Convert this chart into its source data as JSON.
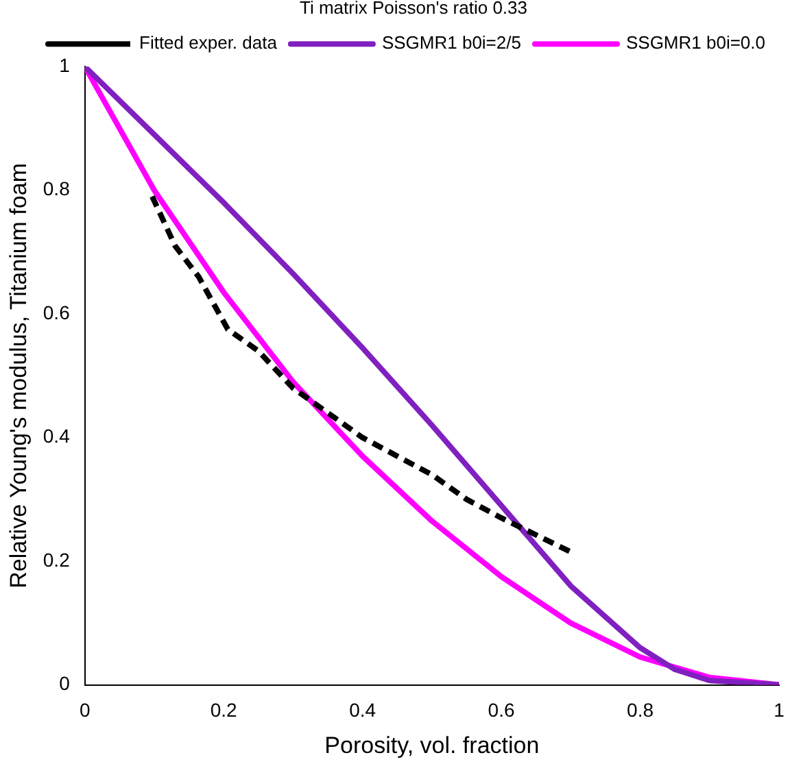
{
  "chart_data": {
    "type": "line",
    "xlabel": "Porosity, vol. fraction",
    "ylabel": "Relative Young's modulus, Titanium foam",
    "legend_title": "Ti matrix Poisson's ratio 0.33",
    "legend": "top right",
    "grid": false,
    "marker": "none",
    "xlim": [
      0,
      1
    ],
    "ylim": [
      0,
      1
    ],
    "xticks": [
      0,
      0.2,
      0.4,
      0.6,
      0.8,
      1
    ],
    "yticks": [
      0,
      0.2,
      0.4,
      0.6,
      0.8,
      1
    ],
    "series": [
      {
        "name": "Fitted exper. data",
        "color": "#000000",
        "line_style": "dashed",
        "x": [
          0.097,
          0.13,
          0.164,
          0.206,
          0.25,
          0.3,
          0.4,
          0.5,
          0.55,
          0.6,
          0.7
        ],
        "values": [
          0.79,
          0.71,
          0.66,
          0.575,
          0.54,
          0.48,
          0.4,
          0.34,
          0.3,
          0.27,
          0.215
        ]
      },
      {
        "name": "SSGMR1 b0i=2/5",
        "color": "#8020c0",
        "line_style": "solid",
        "x": [
          0,
          0.1,
          0.2,
          0.3,
          0.4,
          0.5,
          0.6,
          0.7,
          0.8,
          0.85,
          0.9,
          1
        ],
        "values": [
          1,
          0.89,
          0.78,
          0.665,
          0.545,
          0.42,
          0.29,
          0.16,
          0.06,
          0.025,
          0.007,
          0
        ]
      },
      {
        "name": "SSGMR1 b0i=0.0",
        "color": "#ff00ff",
        "line_style": "solid",
        "x": [
          0,
          0.1,
          0.2,
          0.3,
          0.4,
          0.5,
          0.6,
          0.7,
          0.8,
          0.9,
          1
        ],
        "values": [
          1,
          0.8,
          0.635,
          0.49,
          0.37,
          0.265,
          0.175,
          0.1,
          0.045,
          0.012,
          0
        ]
      }
    ]
  }
}
